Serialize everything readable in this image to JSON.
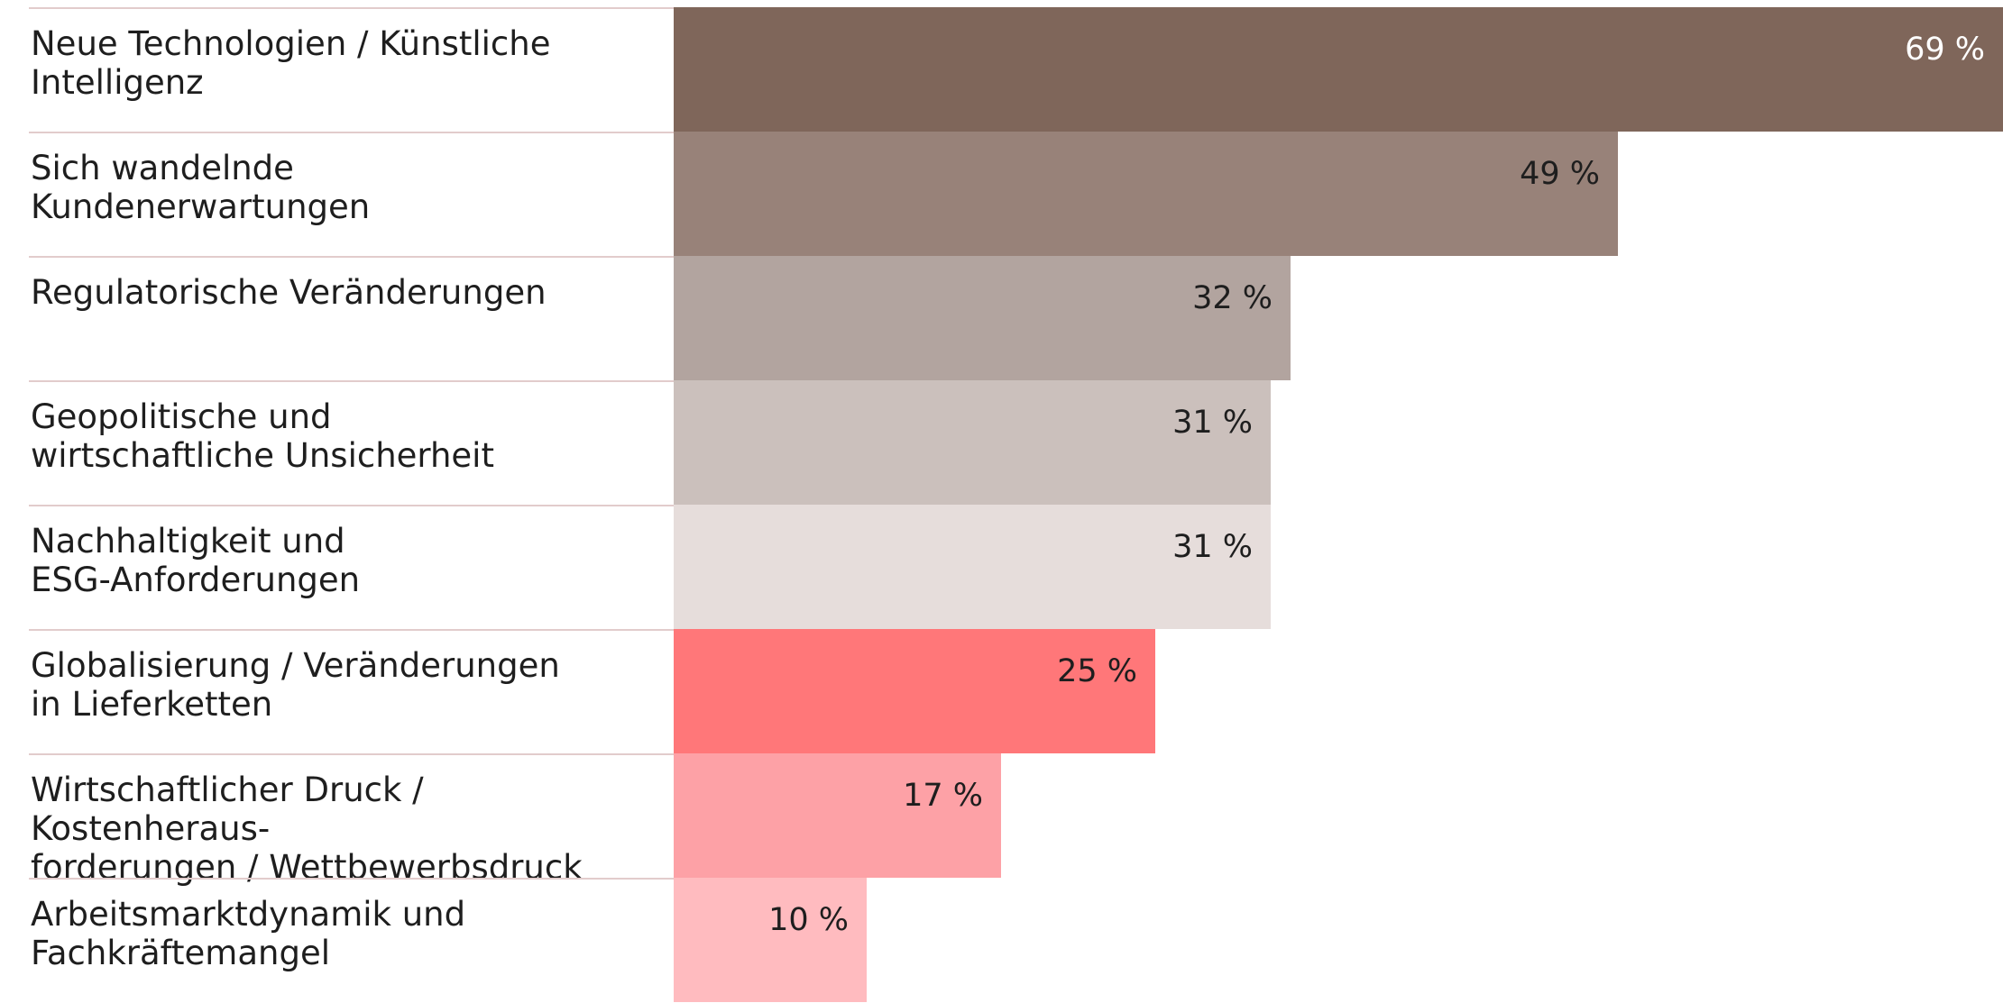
{
  "chart_data": {
    "type": "bar",
    "orientation": "horizontal",
    "categories": [
      "Neue Technologien / Künstliche\nIntelligenz",
      "Sich wandelnde\nKundenerwartungen",
      "Regulatorische Veränderungen",
      "Geopolitische und\nwirtschaftliche Unsicherheit",
      "Nachhaltigkeit und\nESG-Anforderungen",
      "Globalisierung / Veränderungen\nin Lieferketten",
      "Wirtschaftlicher Druck / Kostenheraus-\nforderungen / Wettbewerbsdruck",
      "Arbeitsmarktdynamik und\nFachkräftemangel"
    ],
    "values": [
      69,
      49,
      32,
      31,
      31,
      25,
      17,
      10
    ],
    "value_labels": [
      "69 %",
      "49 %",
      "32 %",
      "31 %",
      "31 %",
      "25 %",
      "17 %",
      "10 %"
    ],
    "colors": [
      "#7f665a",
      "#988279",
      "#b2a49f",
      "#cbc0bc",
      "#e6dddb",
      "#ff7779",
      "#fda1a6",
      "#ffbbbf"
    ],
    "label_colors": [
      "#ffffff",
      "#1e1e1e",
      "#1e1e1e",
      "#1e1e1e",
      "#1e1e1e",
      "#1e1e1e",
      "#1e1e1e",
      "#1e1e1e"
    ],
    "xlim": [
      0,
      69
    ],
    "grid": false,
    "title": "",
    "xlabel": "",
    "ylabel": ""
  }
}
